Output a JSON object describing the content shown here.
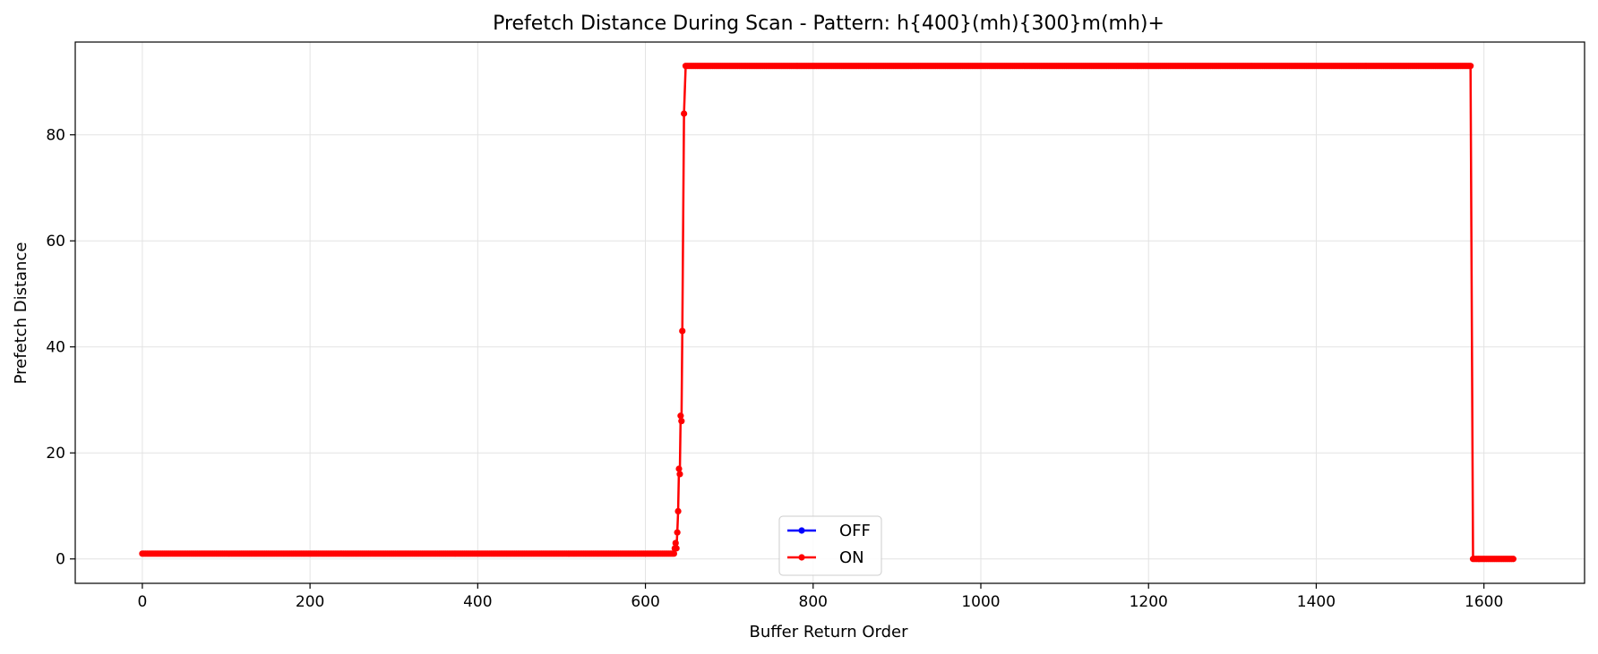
{
  "chart_data": {
    "type": "line",
    "title": "Prefetch Distance During Scan - Pattern: h{400}(mh){300}m(mh)+",
    "xlabel": "Buffer Return Order",
    "ylabel": "Prefetch Distance",
    "xlim": [
      -80,
      1720
    ],
    "ylim": [
      -4.6,
      97.5
    ],
    "xticks": [
      0,
      200,
      400,
      600,
      800,
      1000,
      1200,
      1400,
      1600
    ],
    "yticks": [
      0,
      20,
      40,
      60,
      80
    ],
    "grid": true,
    "legend_position": "lower-center",
    "series": [
      {
        "name": "OFF",
        "color": "#0000ff",
        "points": []
      },
      {
        "name": "ON",
        "color": "#ff0000",
        "segments": [
          {
            "x_start": 0,
            "x_end": 633,
            "step": 2,
            "y": 1
          },
          {
            "x_start": 650,
            "x_end": 1585,
            "step": 2,
            "y": 93
          },
          {
            "x_start": 1587,
            "x_end": 1635,
            "step": 2,
            "y": 0
          }
        ],
        "ramp_points": [
          [
            634,
            1
          ],
          [
            635,
            2
          ],
          [
            636,
            3
          ],
          [
            637,
            2
          ],
          [
            638,
            5
          ],
          [
            639,
            9
          ],
          [
            640,
            17
          ],
          [
            641,
            16
          ],
          [
            642,
            27
          ],
          [
            643,
            26
          ],
          [
            644,
            43
          ],
          [
            646,
            84
          ],
          [
            648,
            93
          ]
        ]
      }
    ]
  }
}
